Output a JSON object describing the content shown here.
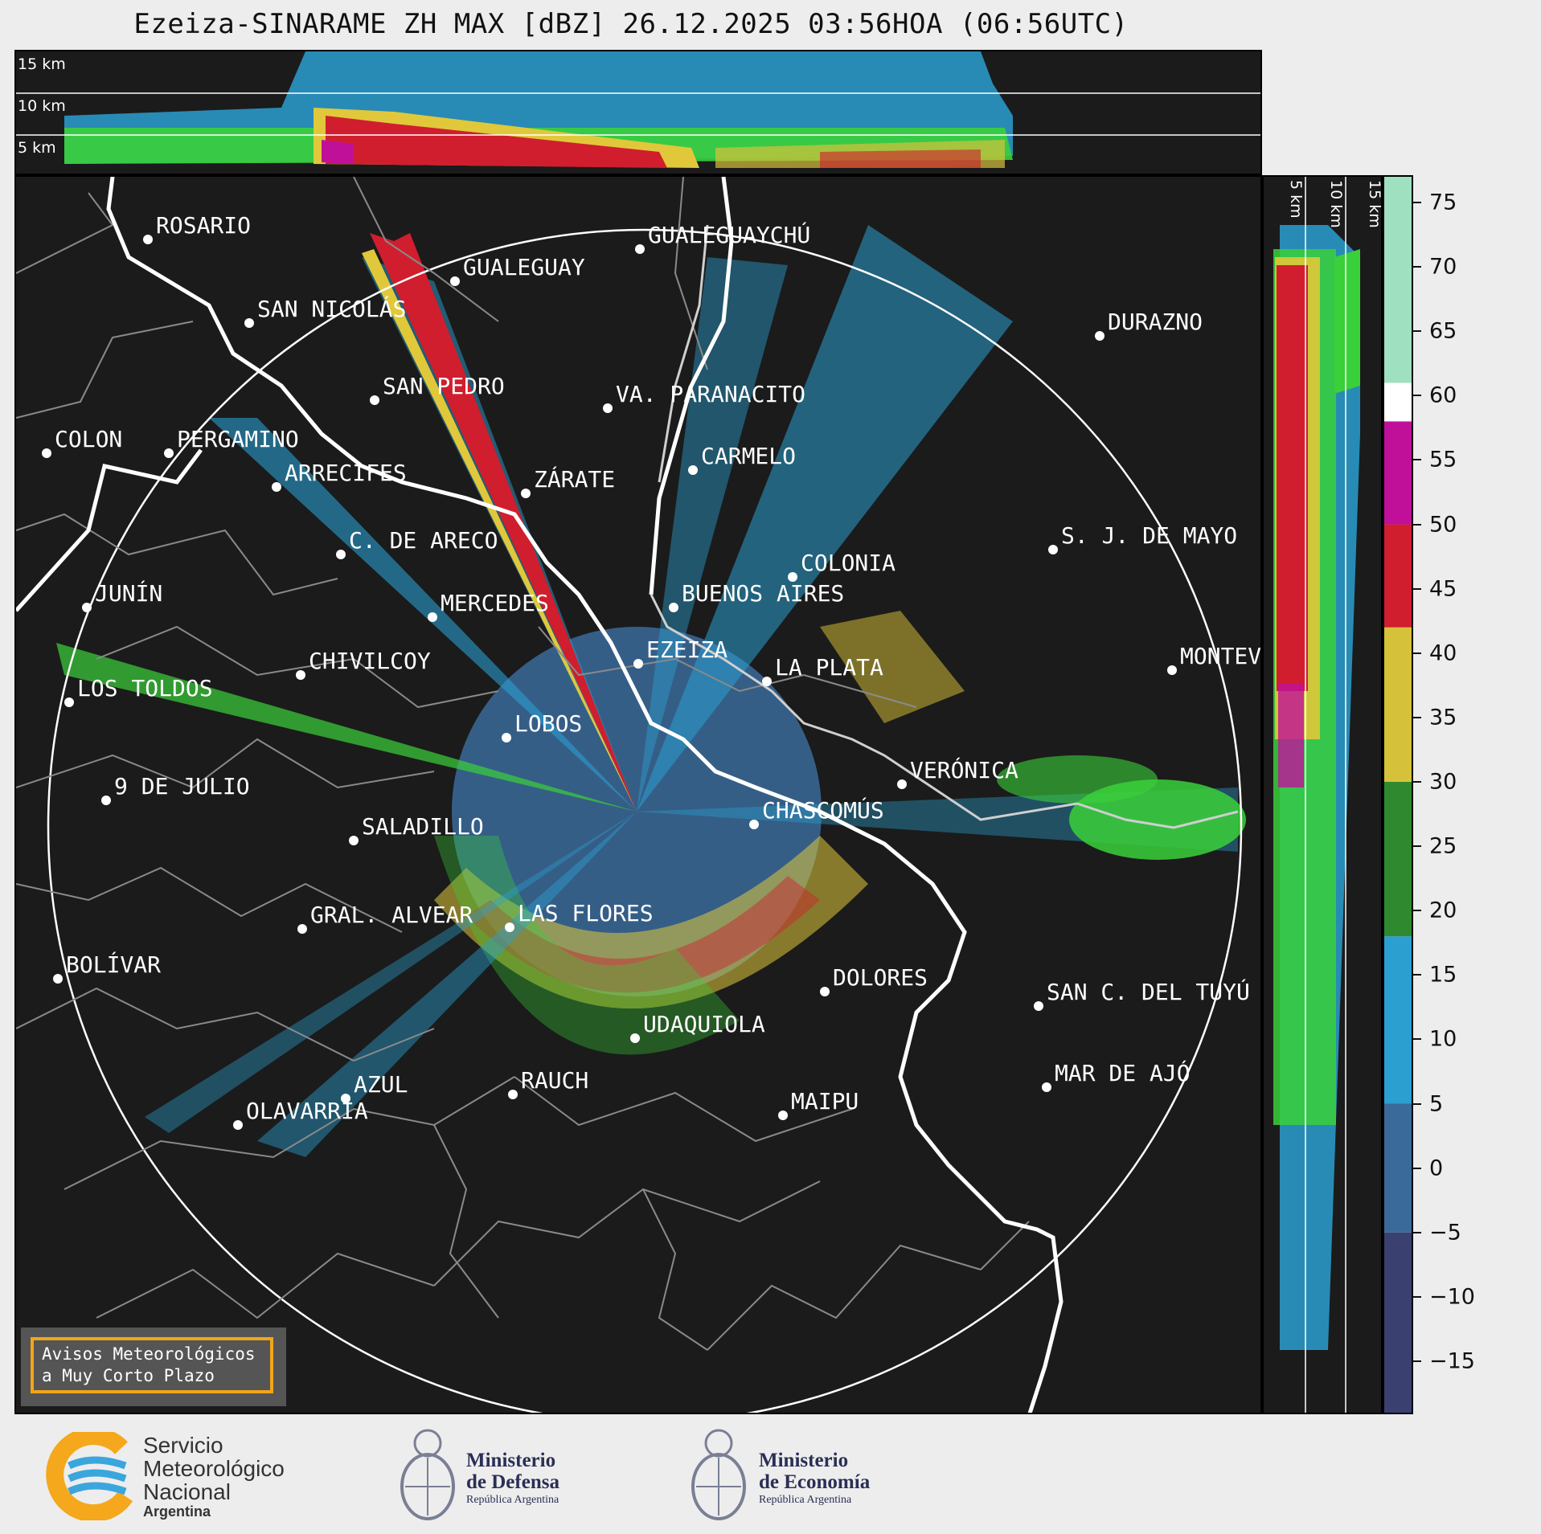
{
  "title": "Ezeiza-SINARAME ZH MAX [dBZ] 26.12.2025 03:56HOA (06:56UTC)",
  "top_panel": {
    "altitude_labels": [
      "15 km",
      "10 km",
      "5 km"
    ]
  },
  "side_panel": {
    "altitude_labels": [
      "5 km",
      "10 km",
      "15 km"
    ]
  },
  "colorbar": {
    "ticks": [
      "75",
      "70",
      "65",
      "60",
      "55",
      "50",
      "45",
      "40",
      "35",
      "30",
      "25",
      "20",
      "15",
      "10",
      "5",
      "0",
      "−5",
      "−10",
      "−15"
    ],
    "tick_values": [
      75,
      70,
      65,
      60,
      55,
      50,
      45,
      40,
      35,
      30,
      25,
      20,
      15,
      10,
      5,
      0,
      -5,
      -10,
      -15
    ],
    "range": [
      -19,
      77
    ],
    "color_stops": [
      {
        "min": -19,
        "max": -5,
        "color": "#3a4070"
      },
      {
        "min": -5,
        "max": 5,
        "color": "#3a6a9a"
      },
      {
        "min": 5,
        "max": 18,
        "color": "#2a9fd0"
      },
      {
        "min": 18,
        "max": 30,
        "color": "#2f8a2f"
      },
      {
        "min": 30,
        "max": 42,
        "color": "#d6c23a"
      },
      {
        "min": 42,
        "max": 50,
        "color": "#d01e2e"
      },
      {
        "min": 50,
        "max": 58,
        "color": "#c0109a"
      },
      {
        "min": 58,
        "max": 61,
        "color": "#ffffff"
      },
      {
        "min": 61,
        "max": 77,
        "color": "#9fe0c0"
      }
    ]
  },
  "cities": [
    {
      "name": "ROSARIO"
    },
    {
      "name": "GUALEGUAYCHÚ"
    },
    {
      "name": "GUALEGUAY"
    },
    {
      "name": "SAN NICOLÁS"
    },
    {
      "name": "DURAZNO"
    },
    {
      "name": "SAN PEDRO"
    },
    {
      "name": "VA. PARANACITO"
    },
    {
      "name": "COLON"
    },
    {
      "name": "PERGAMINO"
    },
    {
      "name": "CARMELO"
    },
    {
      "name": "ARRECIFES"
    },
    {
      "name": "ZÁRATE"
    },
    {
      "name": "S. J. DE MAYO"
    },
    {
      "name": "C. DE ARECO"
    },
    {
      "name": "COLONIA"
    },
    {
      "name": "JUNÍN"
    },
    {
      "name": "BUENOS AIRES"
    },
    {
      "name": "MERCEDES"
    },
    {
      "name": "EZEIZA"
    },
    {
      "name": "MONTEV"
    },
    {
      "name": "CHIVILCOY"
    },
    {
      "name": "LA PLATA"
    },
    {
      "name": "LOS TOLDOS"
    },
    {
      "name": "LOBOS"
    },
    {
      "name": "VERÓNICA"
    },
    {
      "name": "9 DE JULIO"
    },
    {
      "name": "CHASCOMÚS"
    },
    {
      "name": "SALADILLO"
    },
    {
      "name": "GRAL. ALVEAR"
    },
    {
      "name": "LAS FLORES"
    },
    {
      "name": "BOLÍVAR"
    },
    {
      "name": "DOLORES"
    },
    {
      "name": "SAN C. DEL TUYÚ"
    },
    {
      "name": "UDAQUIOLA"
    },
    {
      "name": "MAR DE AJÓ"
    },
    {
      "name": "AZUL"
    },
    {
      "name": "RAUCH"
    },
    {
      "name": "OLAVARRÍA"
    },
    {
      "name": "MAIPU"
    }
  ],
  "alert_box": {
    "line1": "Avisos Meteorológicos",
    "line2": "a Muy Corto Plazo"
  },
  "logos": {
    "smn": {
      "line1": "Servicio",
      "line2": "Meteorológico",
      "line3": "Nacional",
      "line4": "Argentina"
    },
    "defensa": {
      "line1": "Ministerio",
      "line2": "de Defensa",
      "line3": "República Argentina"
    },
    "economia": {
      "line1": "Ministerio",
      "line2": "de Economía",
      "line3": "República Argentina"
    }
  }
}
